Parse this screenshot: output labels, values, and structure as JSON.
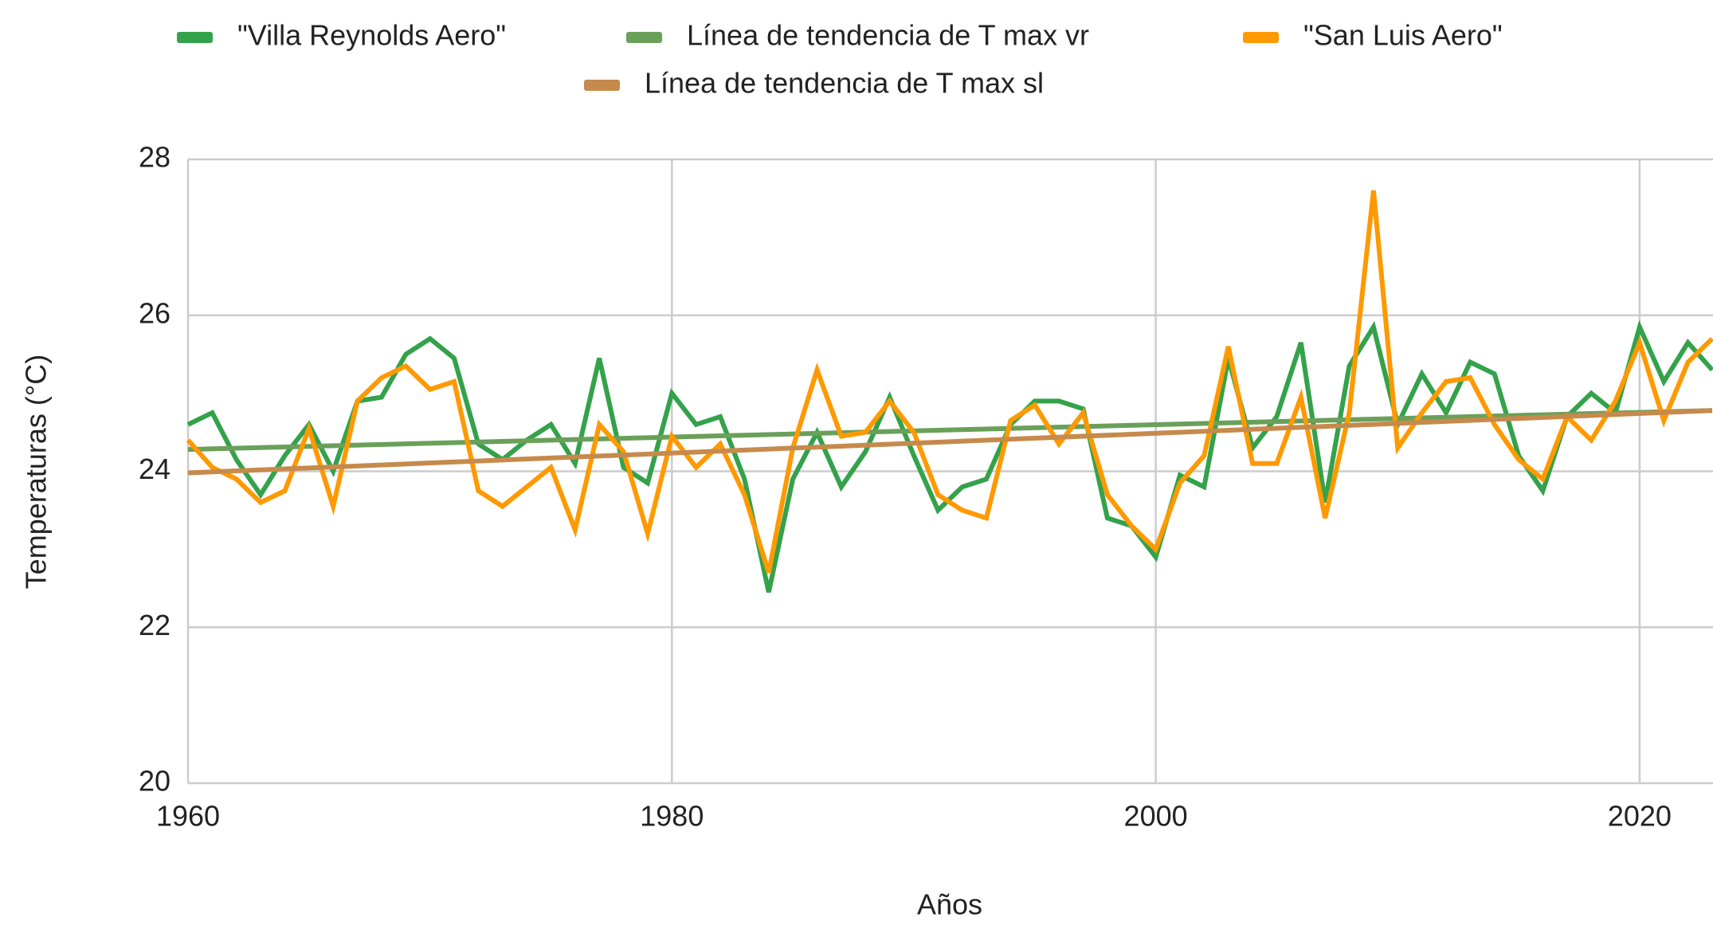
{
  "chart_data": {
    "type": "line",
    "x_label": "Años",
    "y_label": "Temperaturas (°C)",
    "x": [
      1960,
      1961,
      1962,
      1963,
      1964,
      1965,
      1966,
      1967,
      1968,
      1969,
      1970,
      1971,
      1972,
      1973,
      1974,
      1975,
      1976,
      1977,
      1978,
      1979,
      1980,
      1981,
      1982,
      1983,
      1984,
      1985,
      1986,
      1987,
      1988,
      1989,
      1990,
      1991,
      1992,
      1993,
      1994,
      1995,
      1996,
      1997,
      1998,
      1999,
      2000,
      2001,
      2002,
      2003,
      2004,
      2005,
      2006,
      2007,
      2008,
      2009,
      2010,
      2011,
      2012,
      2013,
      2014,
      2015,
      2016,
      2017,
      2018,
      2019,
      2020,
      2021,
      2022,
      2023
    ],
    "series": [
      {
        "name": "\"Villa Reynolds Aero\"",
        "color": "#34a24b",
        "values": [
          24.6,
          24.75,
          24.15,
          23.7,
          24.2,
          24.6,
          24.0,
          24.9,
          24.95,
          25.5,
          25.7,
          25.45,
          24.35,
          24.15,
          24.4,
          24.6,
          24.1,
          25.45,
          24.05,
          23.85,
          25.0,
          24.6,
          24.7,
          23.9,
          22.45,
          23.9,
          24.5,
          23.8,
          24.25,
          24.95,
          24.2,
          23.5,
          23.8,
          23.9,
          24.6,
          24.9,
          24.9,
          24.8,
          23.4,
          23.3,
          22.9,
          23.95,
          23.8,
          25.45,
          24.3,
          24.7,
          25.65,
          23.6,
          25.35,
          25.85,
          24.6,
          25.25,
          24.75,
          25.4,
          25.25,
          24.2,
          23.75,
          24.7,
          25.0,
          24.75,
          25.85,
          25.15,
          25.65,
          25.3
        ]
      },
      {
        "name": "Línea de tendencia de T max vr",
        "color": "#6aa05a",
        "x": [
          1960,
          2023
        ],
        "values": [
          24.28,
          24.78
        ]
      },
      {
        "name": "\"San Luis Aero\"",
        "color": "#ff9900",
        "values": [
          24.4,
          24.05,
          23.9,
          23.6,
          23.75,
          24.55,
          23.55,
          24.9,
          25.2,
          25.35,
          25.05,
          25.15,
          23.75,
          23.55,
          23.8,
          24.05,
          23.25,
          24.6,
          24.25,
          23.2,
          24.45,
          24.05,
          24.35,
          23.7,
          22.7,
          24.3,
          25.3,
          24.45,
          24.5,
          24.9,
          24.5,
          23.7,
          23.5,
          23.4,
          24.65,
          24.85,
          24.35,
          24.75,
          23.7,
          23.3,
          23.0,
          23.85,
          24.2,
          25.6,
          24.1,
          24.1,
          24.95,
          23.4,
          24.75,
          27.6,
          24.3,
          24.75,
          25.15,
          25.2,
          24.6,
          24.15,
          23.9,
          24.7,
          24.4,
          24.9,
          25.65,
          24.65,
          25.4,
          25.7
        ]
      },
      {
        "name": "Línea de tendencia de T max sl",
        "color": "#c68a4c",
        "x": [
          1960,
          2023
        ],
        "values": [
          23.98,
          24.78
        ]
      }
    ],
    "xlim": [
      1960,
      2023
    ],
    "xticks": [
      1960,
      1980,
      2000,
      2020
    ],
    "ylim": [
      20,
      28
    ],
    "yticks": [
      20,
      22,
      24,
      26,
      28
    ],
    "grid": true
  }
}
